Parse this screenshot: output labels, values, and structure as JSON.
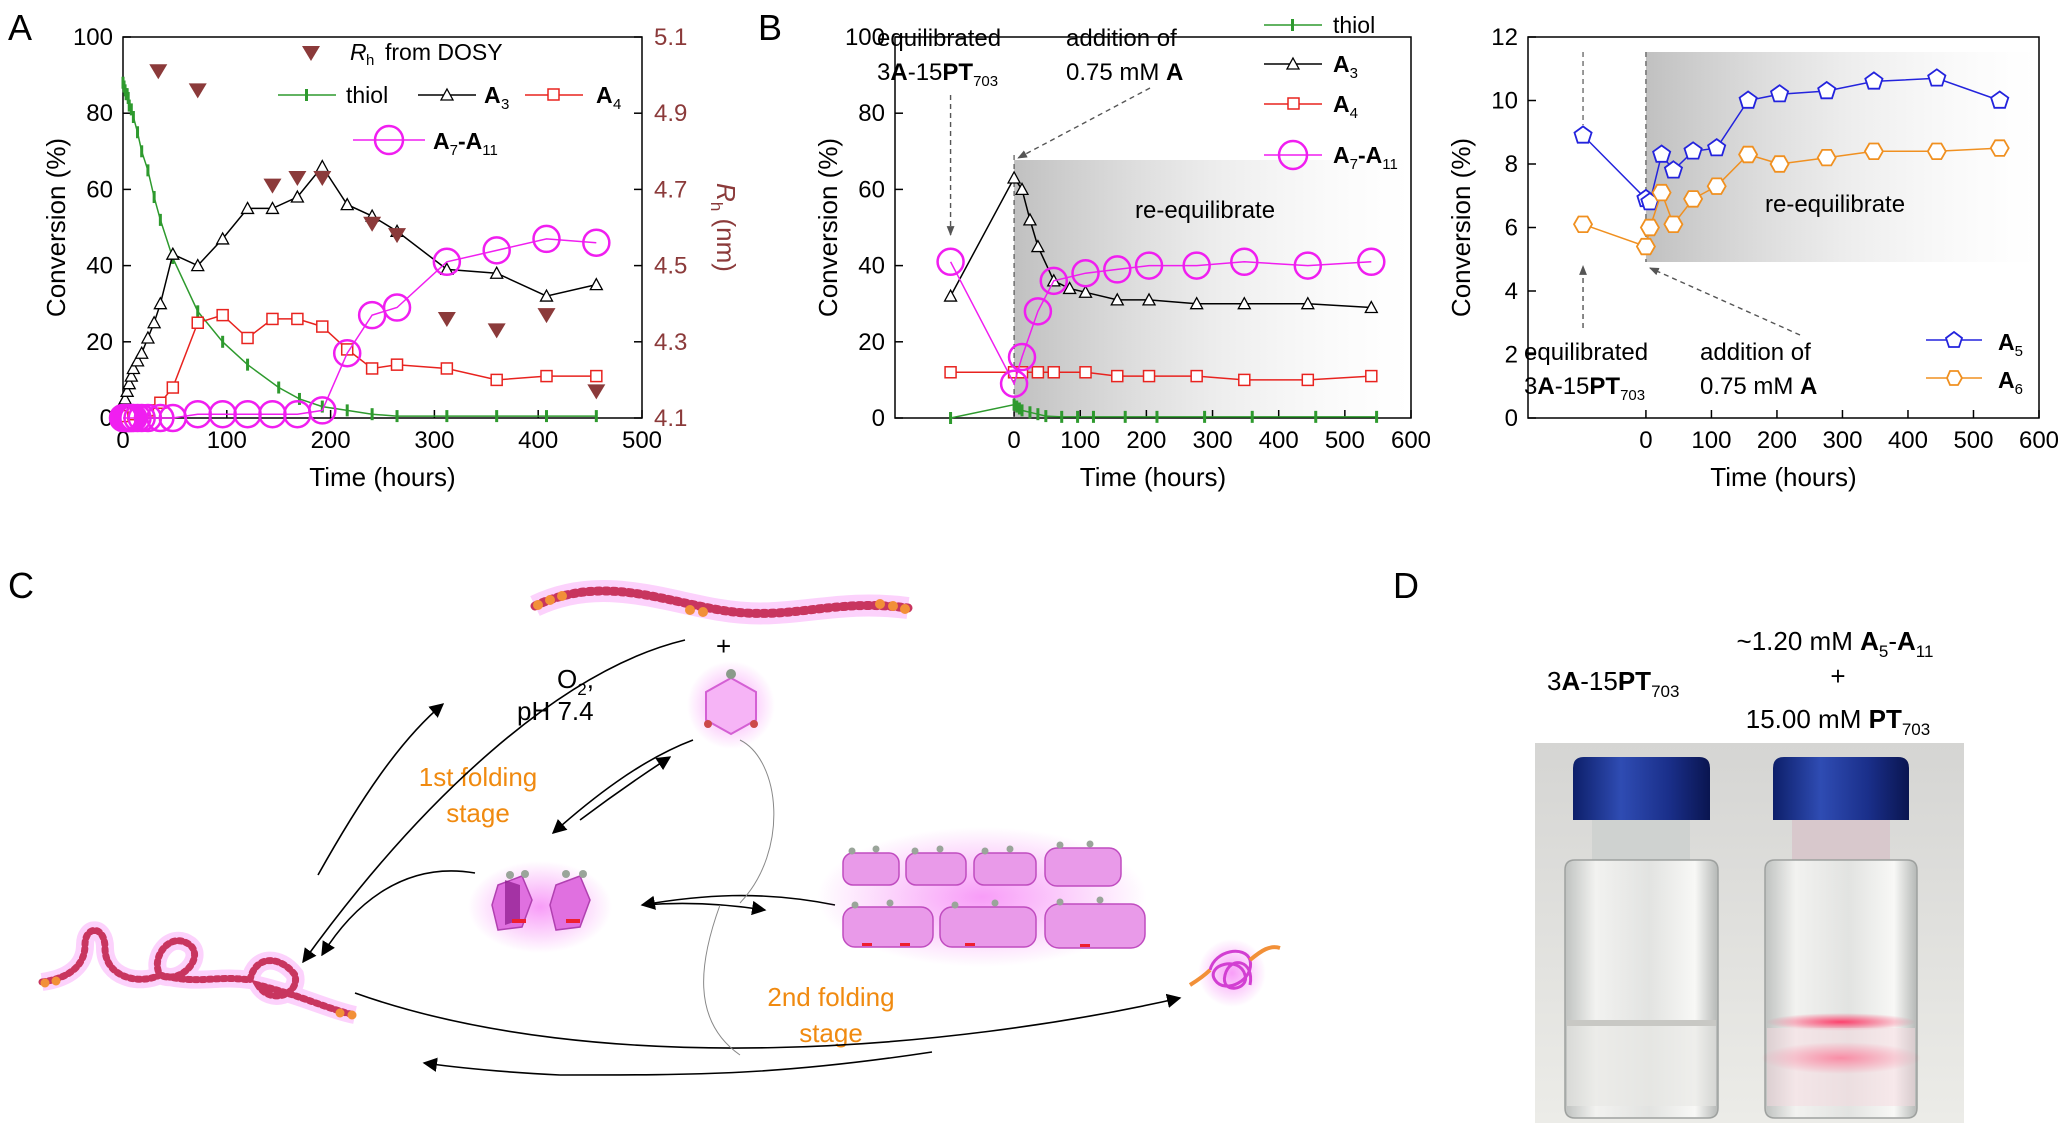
{
  "panels": {
    "A": "A",
    "B": "B",
    "C": "C",
    "D": "D"
  },
  "colors": {
    "thiol": "#2e9a2e",
    "A3": "#000000",
    "A4": "#e8231f",
    "A7A11": "#f01ef0",
    "rh": "#8b3a3a",
    "A5": "#2323dd",
    "A6": "#f09020",
    "orange": "#f08a10",
    "tick": "#000000"
  },
  "chart_data": [
    {
      "id": "A",
      "type": "line",
      "xlabel": "Time (hours)",
      "ylabel": "Conversion (%)",
      "y2label": "Rh (nm)",
      "xlim": [
        0,
        500
      ],
      "ylim": [
        0,
        100
      ],
      "y2lim": [
        4.1,
        5.1
      ],
      "xticks": [
        "0",
        "100",
        "200",
        "300",
        "400",
        "500"
      ],
      "yticks": [
        "0",
        "20",
        "40",
        "60",
        "80",
        "100"
      ],
      "y2ticks": [
        "4.1",
        "4.3",
        "4.5",
        "4.7",
        "4.9",
        "5.1"
      ],
      "legend": {
        "rh": "from DOSY",
        "thiol": "thiol",
        "A3": "A",
        "A3_sub": "3",
        "A4": "A",
        "A4_sub": "4",
        "A7A11": "A",
        "A7A11_sub1": "7",
        "A7A11_mid": "-A",
        "A7A11_sub2": "11"
      },
      "series": [
        {
          "name": "thiol",
          "x": [
            0,
            1,
            2,
            3,
            4,
            5,
            6,
            8,
            10,
            14,
            18,
            24,
            30,
            36,
            48,
            72,
            96,
            120,
            150,
            170,
            192,
            216,
            240,
            264,
            312,
            360,
            408,
            456
          ],
          "y": [
            88,
            87,
            86,
            85,
            85,
            84,
            82,
            81,
            79,
            75,
            70,
            65,
            58,
            52,
            42,
            28,
            20,
            14,
            8,
            5,
            3,
            2,
            1,
            0.5,
            0.5,
            0.5,
            0.5,
            0.5
          ]
        },
        {
          "name": "A3",
          "x": [
            0,
            2,
            4,
            6,
            8,
            10,
            14,
            18,
            24,
            30,
            36,
            48,
            72,
            96,
            120,
            144,
            168,
            192,
            216,
            240,
            264,
            312,
            360,
            408,
            456
          ],
          "y": [
            4,
            5,
            7,
            9,
            11,
            13,
            15,
            17,
            21,
            25,
            30,
            43,
            40,
            47,
            55,
            55,
            58,
            66,
            56,
            53,
            49,
            39,
            38,
            32,
            35
          ]
        },
        {
          "name": "A4",
          "x": [
            0,
            10,
            24,
            36,
            48,
            72,
            96,
            120,
            144,
            168,
            192,
            216,
            240,
            264,
            312,
            360,
            408,
            456
          ],
          "y": [
            0.5,
            1,
            2,
            4,
            8,
            25,
            27,
            21,
            26,
            26,
            24,
            18,
            13,
            14,
            13,
            10,
            11,
            11
          ]
        },
        {
          "name": "A7-A11",
          "x": [
            0,
            2,
            4,
            6,
            8,
            10,
            14,
            18,
            24,
            36,
            48,
            72,
            96,
            120,
            144,
            168,
            192,
            216,
            240,
            264,
            312,
            360,
            408,
            456
          ],
          "y": [
            0,
            0,
            0,
            0,
            0,
            0,
            0,
            0,
            0,
            0,
            0,
            1,
            1,
            1,
            1,
            1,
            2,
            17,
            27,
            29,
            41,
            44,
            47,
            46
          ]
        },
        {
          "name": "Rh",
          "axis": "y2",
          "x": [
            34,
            72,
            144,
            168,
            192,
            240,
            264,
            312,
            360,
            408,
            456
          ],
          "y": [
            5.01,
            4.96,
            4.71,
            4.73,
            4.73,
            4.61,
            4.58,
            4.36,
            4.33,
            4.37,
            4.17
          ]
        },
        {
          "name": "Rh-legend",
          "axis": "y2",
          "x": [
            190
          ],
          "y": [
            5.07
          ]
        }
      ]
    },
    {
      "id": "B",
      "type": "line",
      "xlabel": "Time (hours)",
      "ylabel": "Conversion (%)",
      "xlim": [
        -180,
        600
      ],
      "ylim": [
        0,
        100
      ],
      "xticks": [
        "0",
        "100",
        "200",
        "300",
        "400",
        "500",
        "600"
      ],
      "yticks": [
        "0",
        "20",
        "40",
        "60",
        "80",
        "100"
      ],
      "legend": {
        "thiol": "thiol",
        "A3": "A",
        "A3_sub": "3",
        "A4": "A",
        "A4_sub": "4",
        "A7A11": "A",
        "A7A11_sub1": "7",
        "A7A11_mid": "-A",
        "A7A11_sub2": "11"
      },
      "annotations": {
        "equil_pre": "equilibrated",
        "equil_3": "3",
        "equil_A": "A",
        "equil_dash": "-15",
        "equil_PT": "PT",
        "equil_sub": "703",
        "addition_line1": "addition of",
        "addition_pre": "0.75 mM",
        "addition_A": "A",
        "region": "re-equilibrate"
      },
      "series": [
        {
          "name": "thiol",
          "x": [
            -96,
            0,
            4,
            8,
            12,
            24,
            36,
            48,
            72,
            96,
            120,
            168,
            216,
            288,
            360,
            456,
            548
          ],
          "y": [
            0,
            3.5,
            3,
            2.5,
            2,
            1.5,
            1,
            0.5,
            0.3,
            0.3,
            0.3,
            0.3,
            0.3,
            0.3,
            0.3,
            0.3,
            0.3
          ]
        },
        {
          "name": "A3",
          "x": [
            -96,
            0,
            12,
            24,
            36,
            60,
            84,
            108,
            156,
            204,
            276,
            348,
            444,
            540
          ],
          "y": [
            32,
            63,
            60,
            52,
            45,
            36,
            34,
            33,
            31,
            31,
            30,
            30,
            30,
            29
          ]
        },
        {
          "name": "A4",
          "x": [
            -96,
            0,
            12,
            36,
            60,
            108,
            156,
            204,
            276,
            348,
            444,
            540
          ],
          "y": [
            12,
            12,
            12,
            12,
            12,
            12,
            11,
            11,
            11,
            10,
            10,
            11
          ]
        },
        {
          "name": "A7-A11",
          "x": [
            -96,
            0,
            12,
            36,
            60,
            108,
            156,
            204,
            276,
            348,
            444,
            540
          ],
          "y": [
            41,
            9,
            16,
            28,
            36,
            38,
            39,
            40,
            40,
            41,
            40,
            41
          ]
        }
      ]
    },
    {
      "id": "B2",
      "type": "line",
      "xlabel": "Time (hours)",
      "ylabel": "Conversion (%)",
      "xlim": [
        -180,
        600
      ],
      "ylim": [
        0,
        12
      ],
      "xticks": [
        "0",
        "100",
        "200",
        "300",
        "400",
        "500",
        "600"
      ],
      "yticks": [
        "0",
        "2",
        "4",
        "6",
        "8",
        "10",
        "12"
      ],
      "legend": {
        "A5": "A",
        "A5_sub": "5",
        "A6": "A",
        "A6_sub": "6"
      },
      "annotations": {
        "equil_pre": "equilibrated",
        "equil_3": "3",
        "equil_A": "A",
        "equil_dash": "-15",
        "equil_PT": "PT",
        "equil_sub": "703",
        "addition_line1": "addition of",
        "addition_pre": "0.75 mM",
        "addition_A": "A",
        "region": "re-equilibrate"
      },
      "series": [
        {
          "name": "A5",
          "x": [
            -96,
            0,
            6,
            24,
            42,
            72,
            108,
            156,
            204,
            276,
            348,
            444,
            540
          ],
          "y": [
            8.9,
            6.9,
            6.8,
            8.3,
            7.8,
            8.4,
            8.5,
            10.0,
            10.2,
            10.3,
            10.6,
            10.7,
            10.0
          ]
        },
        {
          "name": "A6",
          "x": [
            -96,
            0,
            6,
            24,
            42,
            72,
            108,
            156,
            204,
            276,
            348,
            444,
            540
          ],
          "y": [
            6.1,
            5.4,
            6.0,
            7.1,
            6.1,
            6.9,
            7.3,
            8.3,
            8.0,
            8.2,
            8.4,
            8.4,
            8.5
          ]
        }
      ]
    }
  ],
  "panelC": {
    "reagent_O2": "O",
    "reagent_O2_sub": "2",
    "reagent_comma": ",",
    "reagent_pH": "pH 7.4",
    "plus": "+",
    "stage1_line1": "1st folding",
    "stage1_line2": "stage",
    "stage2_line1": "2nd folding",
    "stage2_line2": "stage"
  },
  "panelD": {
    "left_label": {
      "pre": "3",
      "A": "A",
      "dash": "-15",
      "PT": "PT",
      "sub": "703"
    },
    "right_label": {
      "line1_pre": "~1.20 mM",
      "line1_A5": "A",
      "line1_sub5": "5",
      "line1_dash": "-",
      "line1_A11": "A",
      "line1_sub11": "11",
      "line2": "+",
      "line3_pre": "15.00 mM",
      "line3_PT": "PT",
      "line3_sub": "703"
    }
  }
}
